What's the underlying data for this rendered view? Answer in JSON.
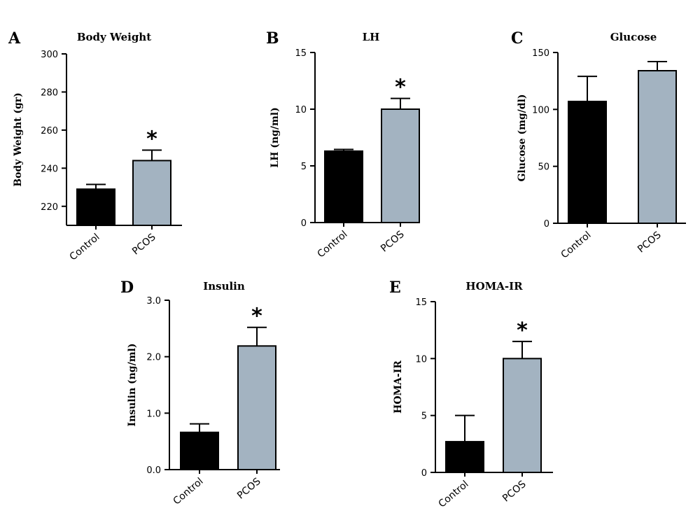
{
  "colors": {
    "control": "#000000",
    "pcos": "#a3b3c1"
  },
  "chart_data": [
    {
      "panel": "A",
      "type": "bar",
      "title": "Body Weight",
      "ylabel": "Body Weight (gr)",
      "categories": [
        "Control",
        "PCOS"
      ],
      "values": [
        229,
        244
      ],
      "errors": [
        2.5,
        5.5
      ],
      "ylim": [
        210,
        300
      ],
      "yticks": [
        "220",
        "240",
        "260",
        "280",
        "300"
      ],
      "yticks_values": [
        220,
        240,
        260,
        280,
        300
      ],
      "significance": [
        "",
        "*"
      ]
    },
    {
      "panel": "B",
      "type": "bar",
      "title": "LH",
      "ylabel": "LH (ng/ml)",
      "categories": [
        "Control",
        "PCOS"
      ],
      "values": [
        6.3,
        10.0
      ],
      "errors": [
        0.15,
        0.95
      ],
      "ylim": [
        0,
        15
      ],
      "yticks": [
        "0",
        "5",
        "10",
        "15"
      ],
      "yticks_values": [
        0,
        5,
        10,
        15
      ],
      "significance": [
        "",
        "*"
      ]
    },
    {
      "panel": "C",
      "type": "bar",
      "title": "Glucose",
      "ylabel": "Glucose (mg/dl)",
      "categories": [
        "Control",
        "PCOS"
      ],
      "values": [
        107,
        134
      ],
      "errors": [
        22,
        8
      ],
      "ylim": [
        0,
        150
      ],
      "yticks": [
        "0",
        "50",
        "100",
        "150"
      ],
      "yticks_values": [
        0,
        50,
        100,
        150
      ],
      "significance": [
        "",
        ""
      ]
    },
    {
      "panel": "D",
      "type": "bar",
      "title": "Insulin",
      "ylabel": "Insulin (ng/ml)",
      "categories": [
        "Control",
        "PCOS"
      ],
      "values": [
        0.66,
        2.19
      ],
      "errors": [
        0.15,
        0.33
      ],
      "ylim": [
        0,
        3.0
      ],
      "yticks": [
        "0.0",
        "1.0",
        "2.0",
        "3.0"
      ],
      "yticks_values": [
        0,
        1,
        2,
        3
      ],
      "significance": [
        "",
        "*"
      ]
    },
    {
      "panel": "E",
      "type": "bar",
      "title": "HOMA-IR",
      "ylabel": "HOMA-IR",
      "categories": [
        "Control",
        "PCOS"
      ],
      "values": [
        2.7,
        10.0
      ],
      "errors": [
        2.3,
        1.5
      ],
      "ylim": [
        0,
        15
      ],
      "yticks": [
        "0",
        "5",
        "10",
        "15"
      ],
      "yticks_values": [
        0,
        5,
        10,
        15
      ],
      "significance": [
        "",
        "*"
      ]
    }
  ]
}
